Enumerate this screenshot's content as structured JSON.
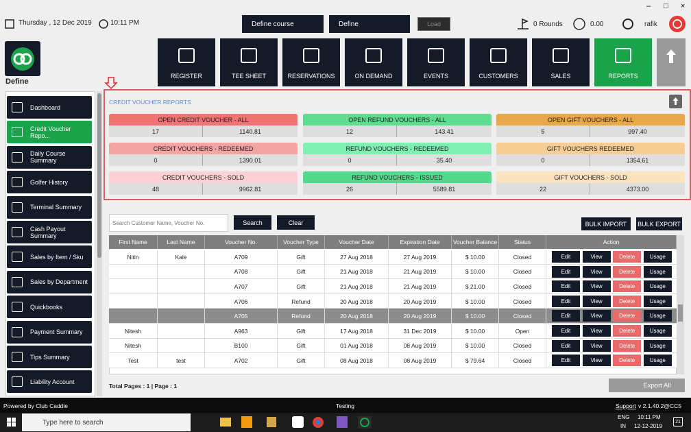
{
  "topbar": {
    "date": "Thursday , 12 Dec 2019",
    "time": "10:11 PM",
    "course_select": "Define course",
    "site_select": "Define",
    "load": "Load",
    "rounds": "0 Rounds",
    "balance": "0.00",
    "user": "rafik"
  },
  "logo_label": "Define",
  "nav": [
    "REGISTER",
    "TEE SHEET",
    "RESERVATIONS",
    "ON DEMAND",
    "EVENTS",
    "CUSTOMERS",
    "SALES",
    "REPORTS"
  ],
  "sidebar": [
    "Dashboard",
    "Credit Voucher Repo...",
    "Daily Course Summary",
    "Golfer History",
    "Terminal Summary",
    "Cash Payout Summary",
    "Sales by Item / Sku",
    "Sales by Department",
    "Quickbooks",
    "Payment Summary",
    "Tips Summary",
    "Liability Account"
  ],
  "summary": {
    "title": "CREDIT VOUCHER REPORTS",
    "cards": [
      {
        "title": "OPEN CREDIT VOUCHER - ALL",
        "count": "17",
        "amount": "1140.81"
      },
      {
        "title": "OPEN REFUND VOUCHERS - ALL",
        "count": "12",
        "amount": "143.41"
      },
      {
        "title": "OPEN GIFT VOUCHERS - ALL",
        "count": "5",
        "amount": "997.40"
      },
      {
        "title": "CREDIT VOUCHERS - REDEEMED",
        "count": "0",
        "amount": "1390.01"
      },
      {
        "title": "REFUND VOUCHERS - REDEEMED",
        "count": "0",
        "amount": "35.40"
      },
      {
        "title": "GIFT VOUCHERS REDEEMED",
        "count": "0",
        "amount": "1354.61"
      },
      {
        "title": "CREDIT VOUCHERS - SOLD",
        "count": "48",
        "amount": "9962.81"
      },
      {
        "title": "REFUND VOUCHERS - ISSUED",
        "count": "26",
        "amount": "5589.81"
      },
      {
        "title": "GIFT VOUCHERS - SOLD",
        "count": "22",
        "amount": "4373.00"
      }
    ]
  },
  "search": {
    "placeholder": "Search Customer Name, Voucher No.",
    "search": "Search",
    "clear": "Clear",
    "bulk_import": "BULK IMPORT",
    "bulk_export": "BULK EXPORT"
  },
  "table": {
    "headers": [
      "First Name",
      "Last Name",
      "Voucher No.",
      "Voucher Type",
      "Voucher Date",
      "Expiration Date",
      "Voucher Balance",
      "Status",
      "Action"
    ],
    "actions": [
      "Edit",
      "View",
      "Delete",
      "Usage"
    ],
    "rows": [
      [
        "Nitin",
        "Kale",
        "A709",
        "Gift",
        "27 Aug 2018",
        "27 Aug 2019",
        "$ 10.00",
        "Closed"
      ],
      [
        null,
        null,
        "A708",
        "Gift",
        "21 Aug 2018",
        "21 Aug 2019",
        "$ 10.00",
        "Closed"
      ],
      [
        null,
        null,
        "A707",
        "Gift",
        "21 Aug 2018",
        "21 Aug 2019",
        "$ 21.00",
        "Closed"
      ],
      [
        null,
        null,
        "A706",
        "Refund",
        "20 Aug 2018",
        "20 Aug 2019",
        "$ 10.00",
        "Closed"
      ],
      [
        null,
        null,
        "A705",
        "Refund",
        "20 Aug 2018",
        "20 Aug 2019",
        "$ 10.00",
        "Closed"
      ],
      [
        "Nitesh",
        null,
        "A963",
        "Gift",
        "17 Aug 2018",
        "31 Dec 2019",
        "$ 10.00",
        "Open"
      ],
      [
        "Nitesh",
        null,
        "B100",
        "Gift",
        "01 Aug 2018",
        "08 Aug 2019",
        "$ 10.00",
        "Closed"
      ],
      [
        "Test",
        "test",
        "A702",
        "Gift",
        "08 Aug 2018",
        "08 Aug 2019",
        "$ 79.64",
        "Closed"
      ]
    ]
  },
  "footer": {
    "pages": "Total Pages : 1 | Page : 1",
    "export": "Export All"
  },
  "status": {
    "powered": "Powered by Club Caddie",
    "env": "Testing",
    "support": "Support",
    "version": "v 2.1.40.2@CC5"
  },
  "taskbar": {
    "search": "Type here to search",
    "lang": "ENG",
    "region": "IN",
    "time": "10:11 PM",
    "date": "12-12-2019",
    "notifications": "21"
  }
}
